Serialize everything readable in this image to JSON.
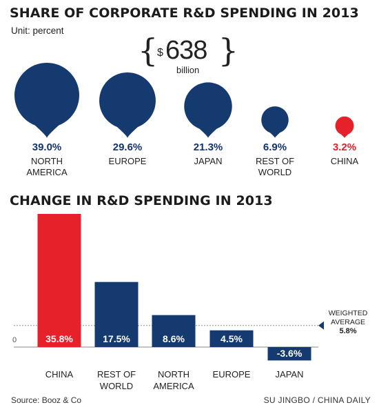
{
  "share_title": "SHARE OF CORPORATE R&D SPENDING IN 2013",
  "unit": "Unit: percent",
  "total": {
    "currency": "$",
    "amount": "638",
    "units": "billion"
  },
  "change_title": "CHANGE IN R&D SPENDING IN 2013",
  "axis_zero": "0",
  "weighted_average": {
    "label_line1": "WEIGHTED",
    "label_line2": "AVERAGE",
    "value": "5.8%"
  },
  "source": "Source: Booz & Co",
  "credit": "SU JINGBO / CHINA DAILY",
  "colors": {
    "navy": "#143a70",
    "red": "#e62129",
    "text": "#1a1a1a"
  },
  "chart_data": [
    {
      "type": "bubble",
      "title": "SHARE OF CORPORATE R&D SPENDING IN 2013",
      "unit": "percent",
      "regions": [
        {
          "label_lines": [
            "NORTH",
            "AMERICA"
          ],
          "value": 39.0,
          "display": "39.0%",
          "color": "#143a70"
        },
        {
          "label_lines": [
            "EUROPE"
          ],
          "value": 29.6,
          "display": "29.6%",
          "color": "#143a70"
        },
        {
          "label_lines": [
            "JAPAN"
          ],
          "value": 21.3,
          "display": "21.3%",
          "color": "#143a70"
        },
        {
          "label_lines": [
            "REST OF",
            "WORLD"
          ],
          "value": 6.9,
          "display": "6.9%",
          "color": "#143a70"
        },
        {
          "label_lines": [
            "CHINA"
          ],
          "value": 3.2,
          "display": "3.2%",
          "color": "#e62129"
        }
      ]
    },
    {
      "type": "bar",
      "title": "CHANGE IN R&D SPENDING IN 2013",
      "categories": [
        [
          "CHINA"
        ],
        [
          "REST OF",
          "WORLD"
        ],
        [
          "NORTH",
          "AMERICA"
        ],
        [
          "EUROPE"
        ],
        [
          "JAPAN"
        ]
      ],
      "values": [
        35.8,
        17.5,
        8.6,
        4.5,
        -3.6
      ],
      "display": [
        "35.8%",
        "17.5%",
        "8.6%",
        "4.5%",
        "-3.6%"
      ],
      "colors": [
        "#e62129",
        "#143a70",
        "#143a70",
        "#143a70",
        "#143a70"
      ],
      "reference_line": {
        "value": 5.8
      },
      "ylim": [
        -3.6,
        35.8
      ]
    }
  ]
}
